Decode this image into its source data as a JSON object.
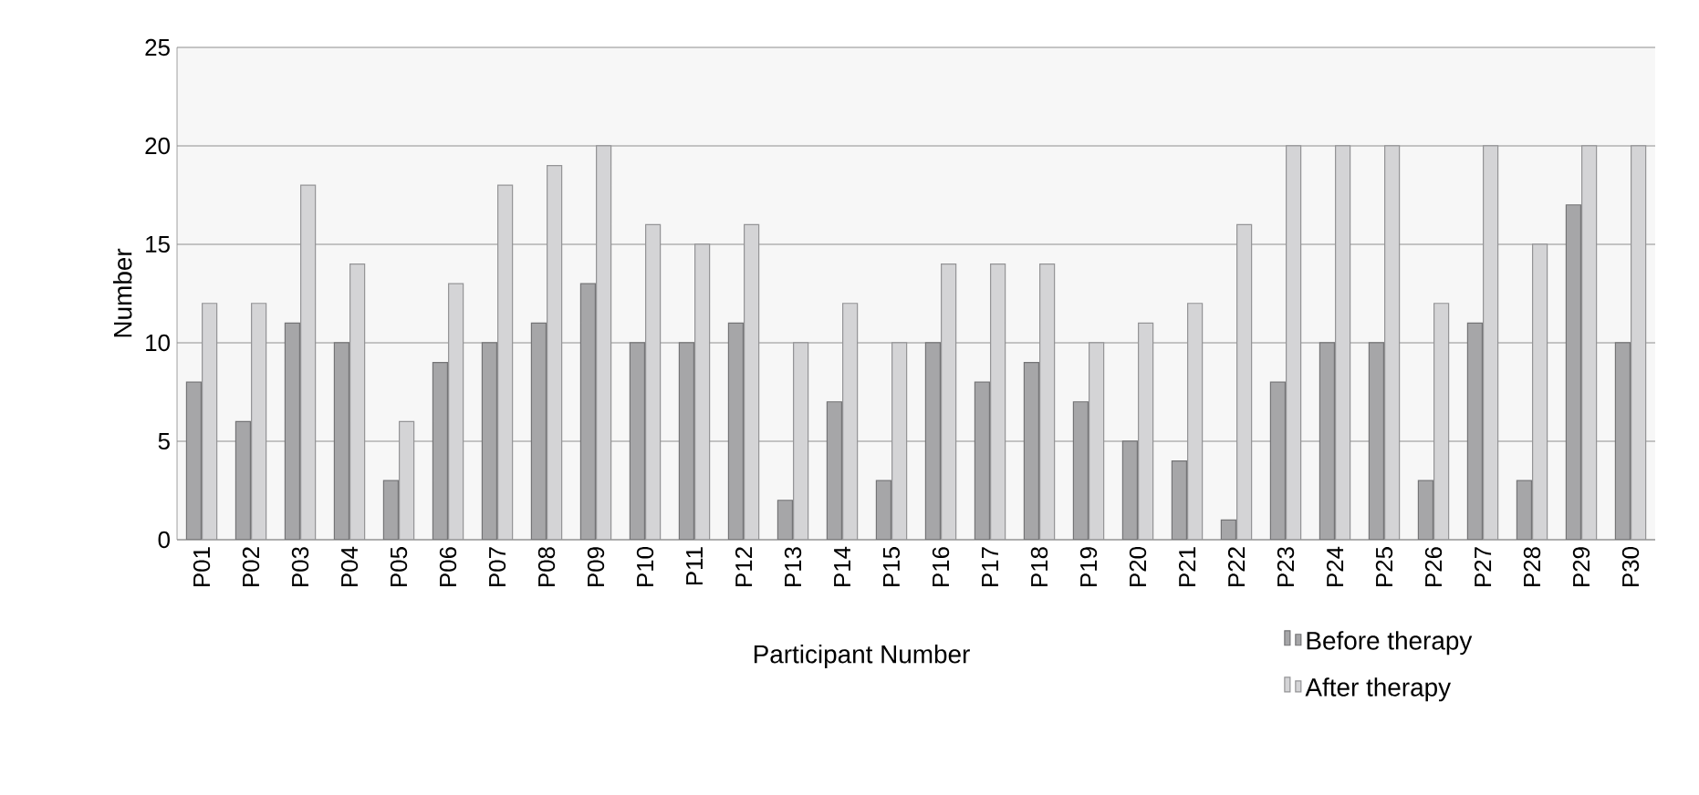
{
  "chart_data": {
    "type": "bar",
    "xlabel": "Participant Number",
    "ylabel": "Number",
    "categories": [
      "P01",
      "P02",
      "P03",
      "P04",
      "P05",
      "P06",
      "P07",
      "P08",
      "P09",
      "P10",
      "P11",
      "P12",
      "P13",
      "P14",
      "P15",
      "P16",
      "P17",
      "P18",
      "P19",
      "P20",
      "P21",
      "P22",
      "P23",
      "P24",
      "P25",
      "P26",
      "P27",
      "P28",
      "P29",
      "P30"
    ],
    "series": [
      {
        "name": "Before therapy",
        "color": "#a6a6a8",
        "values": [
          8,
          6,
          11,
          10,
          3,
          9,
          10,
          11,
          13,
          10,
          10,
          11,
          2,
          7,
          3,
          10,
          8,
          9,
          7,
          5,
          4,
          1,
          8,
          10,
          10,
          3,
          11,
          3,
          17,
          10
        ]
      },
      {
        "name": "After therapy",
        "color": "#d4d4d6",
        "values": [
          12,
          12,
          18,
          14,
          6,
          13,
          18,
          19,
          20,
          16,
          15,
          16,
          10,
          12,
          10,
          14,
          14,
          14,
          10,
          11,
          12,
          16,
          20,
          20,
          20,
          12,
          20,
          15,
          20,
          20
        ]
      }
    ],
    "ylim": [
      0,
      25
    ],
    "yticks": [
      0,
      5,
      10,
      15,
      20,
      25
    ],
    "grid": "y",
    "legend": "bottom right"
  }
}
